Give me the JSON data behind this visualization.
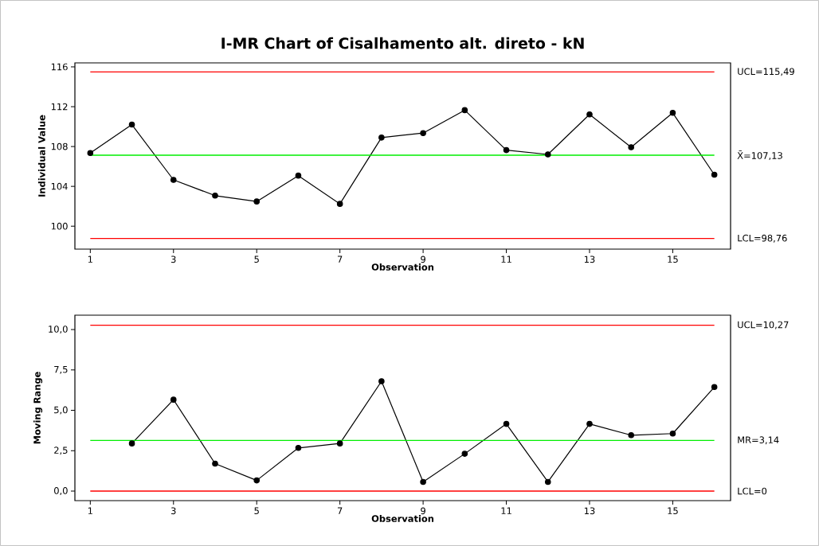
{
  "chart_data": [
    {
      "type": "line",
      "title": "I-MR Chart of Cisalhamento alt. direto - kN",
      "xlabel": "Observation",
      "ylabel": "Individual Value",
      "marker": "circle",
      "line_style": "solid",
      "x": [
        1,
        2,
        3,
        4,
        5,
        6,
        7,
        8,
        9,
        10,
        11,
        12,
        13,
        14,
        15,
        16
      ],
      "series": [
        {
          "color": "#000000",
          "values": [
            107.35,
            110.2,
            104.65,
            103.07,
            102.48,
            105.08,
            102.24,
            108.9,
            109.35,
            111.65,
            107.64,
            107.21,
            111.22,
            107.93,
            111.38,
            105.17
          ]
        }
      ],
      "xlim": [
        0.63,
        16.39
      ],
      "xticks": [
        1,
        3,
        5,
        7,
        9,
        11,
        13,
        15
      ],
      "ylim": [
        97.7,
        116.4
      ],
      "yticks": [
        100,
        104,
        108,
        112,
        116
      ],
      "ref_lines": [
        {
          "axis": "y",
          "value": 115.49,
          "label": "UCL=115,49",
          "color": "#ff0000"
        },
        {
          "axis": "y",
          "value": 107.13,
          "label": "X̄=107,13",
          "color": "#00ee00"
        },
        {
          "axis": "y",
          "value": 98.76,
          "label": "LCL=98,76",
          "color": "#ff0000"
        }
      ]
    },
    {
      "type": "line",
      "xlabel": "Observation",
      "ylabel": "Moving Range",
      "marker": "circle",
      "line_style": "solid",
      "series": [
        {
          "color": "#000000",
          "x": [
            2,
            3,
            4,
            5,
            6,
            7,
            8,
            9,
            10,
            11,
            12,
            13,
            14,
            15,
            16
          ],
          "values": [
            2.95,
            5.66,
            1.7,
            0.66,
            2.67,
            2.95,
            6.8,
            0.57,
            2.31,
            4.16,
            0.57,
            4.16,
            3.46,
            3.56,
            6.44
          ]
        }
      ],
      "xlim": [
        0.63,
        16.39
      ],
      "xticks": [
        1,
        3,
        5,
        7,
        9,
        11,
        13,
        15
      ],
      "ylim": [
        -0.59,
        10.89
      ],
      "yticks": [
        {
          "value": 0,
          "label": "0,0"
        },
        {
          "value": 2.5,
          "label": "2,5"
        },
        {
          "value": 5,
          "label": "5,0"
        },
        {
          "value": 7.5,
          "label": "7,5"
        },
        {
          "value": 10,
          "label": "10,0"
        }
      ],
      "ref_lines": [
        {
          "axis": "y",
          "value": 10.27,
          "label": "UCL=10,27",
          "color": "#ff0000"
        },
        {
          "axis": "y",
          "value": 3.14,
          "label": "MR=3,14",
          "color": "#00ee00"
        },
        {
          "axis": "y",
          "value": 0,
          "label": "LCL=0",
          "color": "#ff0000"
        }
      ]
    }
  ]
}
